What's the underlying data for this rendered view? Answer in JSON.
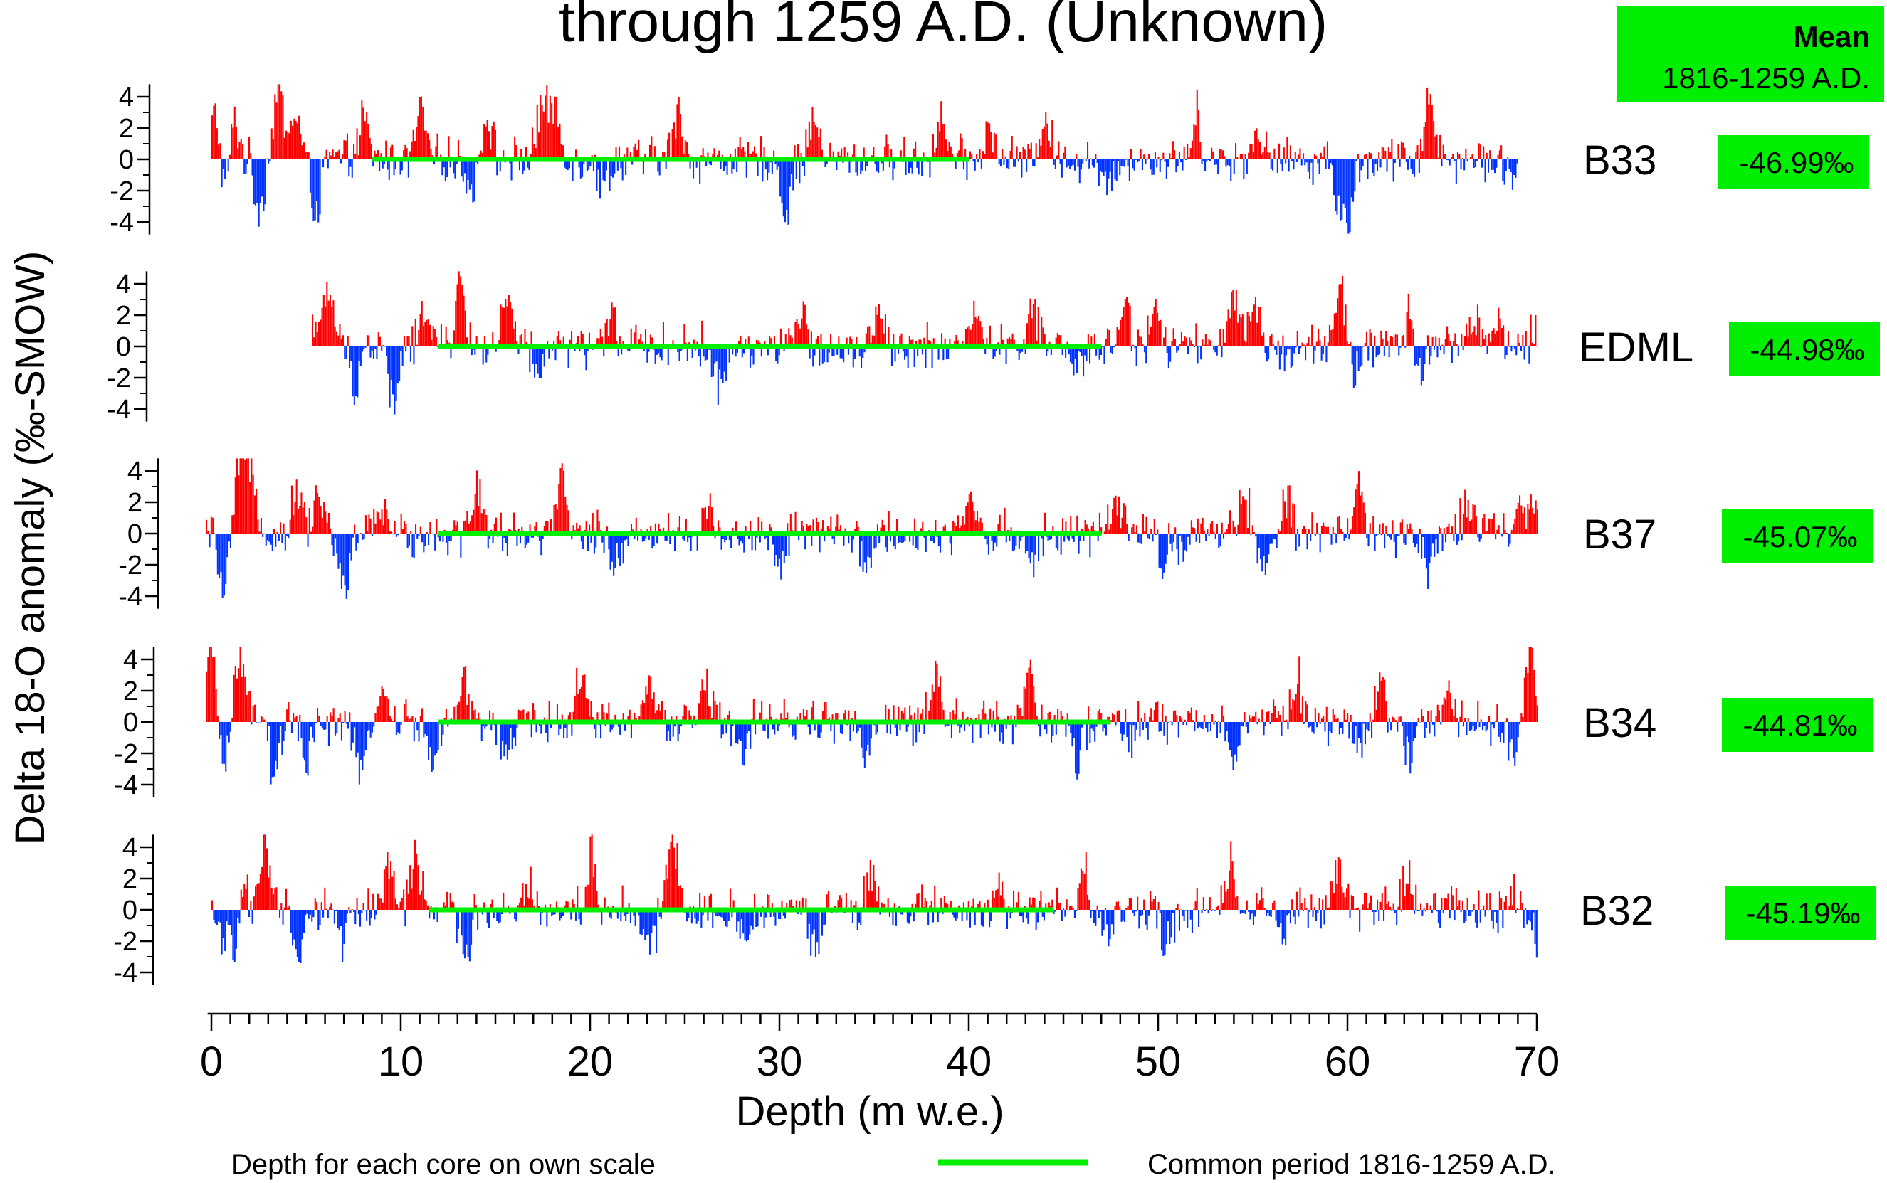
{
  "title_line": "through 1259 A.D. (Unknown)",
  "mean_header": {
    "title": "Mean",
    "subtitle": "1816-1259 A.D."
  },
  "colors": {
    "positive": "#ff0000",
    "negative": "#0033ff",
    "common": "#00ee00",
    "box": "#00ee00"
  },
  "legend": {
    "left_text": "Depth for each core on own scale",
    "right_text": "Common period 1816-1259 A.D."
  },
  "chart_data": {
    "type": "bar",
    "xlabel": "Depth (m w.e.)",
    "ylabel": "Delta 18-O anomaly (‰-SMOW)",
    "xlim": [
      0,
      70
    ],
    "xticks": [
      0,
      10,
      20,
      30,
      40,
      50,
      60,
      70
    ],
    "yticks": [
      4,
      2,
      0,
      -2,
      -4
    ],
    "ylim": [
      -5,
      5
    ],
    "series": [
      {
        "name": "B33",
        "mean": "-46.99‰",
        "depth_range": [
          0,
          69
        ],
        "common_period": [
          8.5,
          40
        ],
        "peaks": [
          [
            0.2,
            3.5
          ],
          [
            0.6,
            -2.5
          ],
          [
            1.2,
            2.4
          ],
          [
            2.5,
            -3
          ],
          [
            3.5,
            4.8
          ],
          [
            4.4,
            3
          ],
          [
            5.5,
            -3
          ],
          [
            8,
            2.5
          ],
          [
            11,
            3.2
          ],
          [
            13.7,
            -2.2
          ],
          [
            14.5,
            2.8
          ],
          [
            17.4,
            3.7
          ],
          [
            18.1,
            3.6
          ],
          [
            20.7,
            -1.6
          ],
          [
            24.6,
            3
          ],
          [
            30.3,
            -3.2
          ],
          [
            31.8,
            2.5
          ],
          [
            38.5,
            2.6
          ],
          [
            41,
            1.8
          ],
          [
            44,
            2.8
          ],
          [
            47.2,
            -2.2
          ],
          [
            52,
            2.8
          ],
          [
            55.2,
            1.9
          ],
          [
            59.5,
            -2.9
          ],
          [
            60.1,
            -3.4
          ],
          [
            64.3,
            4.5
          ],
          [
            68.8,
            -1.2
          ]
        ]
      },
      {
        "name": "EDML",
        "mean": "-44.98‰",
        "depth_range": [
          5.3,
          70
        ],
        "common_period": [
          12,
          47
        ],
        "peaks": [
          [
            5.4,
            1.8
          ],
          [
            6.2,
            3.4
          ],
          [
            7.5,
            -2.2
          ],
          [
            9.6,
            -3.7
          ],
          [
            11.3,
            2.7
          ],
          [
            13.1,
            4.2
          ],
          [
            15.6,
            2.8
          ],
          [
            17.2,
            -2.1
          ],
          [
            21.1,
            2
          ],
          [
            26.8,
            -3
          ],
          [
            31.1,
            1.7
          ],
          [
            35.2,
            2.6
          ],
          [
            40.2,
            2.2
          ],
          [
            43.3,
            2.5
          ],
          [
            45.6,
            -2
          ],
          [
            48.2,
            3.1
          ],
          [
            49.9,
            2.3
          ],
          [
            54,
            3
          ],
          [
            55,
            2.2
          ],
          [
            59.6,
            3.7
          ],
          [
            60.4,
            -1.7
          ],
          [
            63.4,
            4.1
          ],
          [
            63.6,
            -3.9
          ],
          [
            66.7,
            2
          ],
          [
            68,
            1.4
          ],
          [
            70,
            1.6
          ]
        ]
      },
      {
        "name": "B37",
        "mean": "-45.07‰",
        "depth_range": [
          -0.3,
          70
        ],
        "common_period": [
          12,
          47
        ],
        "peaks": [
          [
            0.6,
            -4
          ],
          [
            1.5,
            4.7
          ],
          [
            2.1,
            4.4
          ],
          [
            4.5,
            2.8
          ],
          [
            5.6,
            2.7
          ],
          [
            7,
            -4
          ],
          [
            9,
            1.7
          ],
          [
            14,
            3.2
          ],
          [
            18.5,
            3.1
          ],
          [
            21.3,
            -1.8
          ],
          [
            26.1,
            1.5
          ],
          [
            30,
            -2
          ],
          [
            34.5,
            -2.4
          ],
          [
            40.1,
            2.3
          ],
          [
            43.3,
            -1.8
          ],
          [
            47.8,
            1.8
          ],
          [
            50.2,
            -1.5
          ],
          [
            51.4,
            -1.7
          ],
          [
            54.5,
            2.5
          ],
          [
            55.6,
            -2.9
          ],
          [
            56.8,
            2
          ],
          [
            60.5,
            3.3
          ],
          [
            64.2,
            -2
          ],
          [
            66.3,
            2.2
          ],
          [
            69.2,
            1.5
          ],
          [
            69.8,
            1.6
          ]
        ]
      },
      {
        "name": "B34",
        "mean": "-44.81‰",
        "depth_range": [
          -0.3,
          70
        ],
        "common_period": [
          12,
          47.5
        ],
        "peaks": [
          [
            0,
            4.8
          ],
          [
            0.6,
            -2.9
          ],
          [
            1.5,
            4.5
          ],
          [
            3.3,
            -3.2
          ],
          [
            5,
            -3
          ],
          [
            7.8,
            -4
          ],
          [
            9,
            2
          ],
          [
            11.7,
            -3
          ],
          [
            13.3,
            2.3
          ],
          [
            15.5,
            -2.1
          ],
          [
            19.5,
            3
          ],
          [
            23,
            2.2
          ],
          [
            26.1,
            3
          ],
          [
            28,
            -2.5
          ],
          [
            34.6,
            -2.7
          ],
          [
            38.2,
            2.5
          ],
          [
            43.2,
            3.5
          ],
          [
            45.7,
            -2.6
          ],
          [
            48.5,
            -1.5
          ],
          [
            53.9,
            -2.1
          ],
          [
            57.4,
            2.5
          ],
          [
            60.5,
            -2.1
          ],
          [
            61.7,
            2.6
          ],
          [
            63.3,
            -2.7
          ],
          [
            65.3,
            2.6
          ],
          [
            68.8,
            -2.5
          ],
          [
            69.6,
            4.5
          ]
        ]
      },
      {
        "name": "B32",
        "mean": "-45.19‰",
        "depth_range": [
          0,
          70
        ],
        "common_period": [
          11.5,
          44.5
        ],
        "peaks": [
          [
            0.5,
            -1.5
          ],
          [
            1.4,
            -4.8
          ],
          [
            1.6,
            4.6
          ],
          [
            2.8,
            3.6
          ],
          [
            4.5,
            -3.2
          ],
          [
            6.9,
            -1.8
          ],
          [
            9.3,
            2.8
          ],
          [
            10.7,
            3.6
          ],
          [
            13.4,
            -3
          ],
          [
            16.7,
            2.1
          ],
          [
            20,
            3.5
          ],
          [
            23.1,
            -2.7
          ],
          [
            24.3,
            4.8
          ],
          [
            28.2,
            -2.2
          ],
          [
            31.8,
            -2.8
          ],
          [
            34.8,
            2.1
          ],
          [
            41.2,
            -2.3
          ],
          [
            41.4,
            3.5
          ],
          [
            46,
            2.5
          ],
          [
            47.3,
            -1.6
          ],
          [
            50.4,
            -1.8
          ],
          [
            53.8,
            2.8
          ],
          [
            56.7,
            -1.3
          ],
          [
            59.5,
            2.6
          ],
          [
            63.2,
            2
          ],
          [
            68.7,
            1.2
          ],
          [
            70,
            -1.5
          ]
        ]
      }
    ]
  }
}
